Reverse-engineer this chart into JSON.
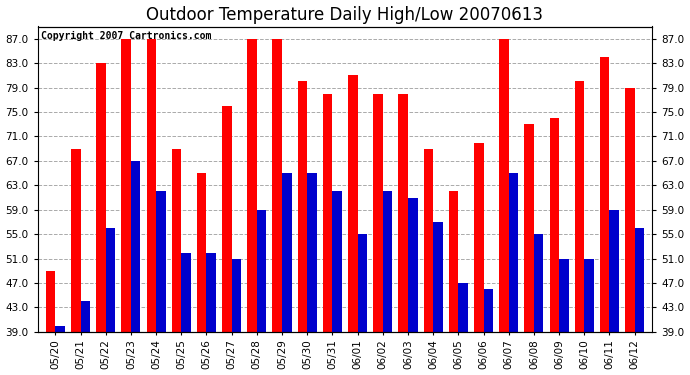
{
  "title": "Outdoor Temperature Daily High/Low 20070613",
  "copyright": "Copyright 2007 Cartronics.com",
  "dates": [
    "05/20",
    "05/21",
    "05/22",
    "05/23",
    "05/24",
    "05/25",
    "05/26",
    "05/27",
    "05/28",
    "05/29",
    "05/30",
    "05/31",
    "06/01",
    "06/02",
    "06/03",
    "06/04",
    "06/05",
    "06/06",
    "06/07",
    "06/08",
    "06/09",
    "06/10",
    "06/11",
    "06/12"
  ],
  "highs": [
    49,
    69,
    83,
    87,
    87,
    69,
    65,
    76,
    87,
    87,
    80,
    78,
    81,
    78,
    78,
    69,
    62,
    70,
    87,
    73,
    74,
    80,
    84,
    79
  ],
  "lows": [
    40,
    44,
    56,
    67,
    62,
    52,
    52,
    51,
    59,
    65,
    65,
    62,
    55,
    62,
    61,
    57,
    47,
    46,
    65,
    55,
    51,
    51,
    59,
    56
  ],
  "high_color": "#ff0000",
  "low_color": "#0000cc",
  "bg_color": "#ffffff",
  "grid_color": "#aaaaaa",
  "ymin": 39.0,
  "ymax": 89.0,
  "yticks": [
    39.0,
    43.0,
    47.0,
    51.0,
    55.0,
    59.0,
    63.0,
    67.0,
    71.0,
    75.0,
    79.0,
    83.0,
    87.0
  ],
  "yticklabels": [
    "39.0",
    "43.0",
    "47.0",
    "51.0",
    "55.0",
    "59.0",
    "63.0",
    "67.0",
    "71.0",
    "75.0",
    "79.0",
    "83.0",
    "87.0"
  ],
  "title_fontsize": 12,
  "copyright_fontsize": 7,
  "tick_fontsize": 7.5,
  "bar_width": 0.38,
  "figwidth": 6.9,
  "figheight": 3.75,
  "dpi": 100
}
